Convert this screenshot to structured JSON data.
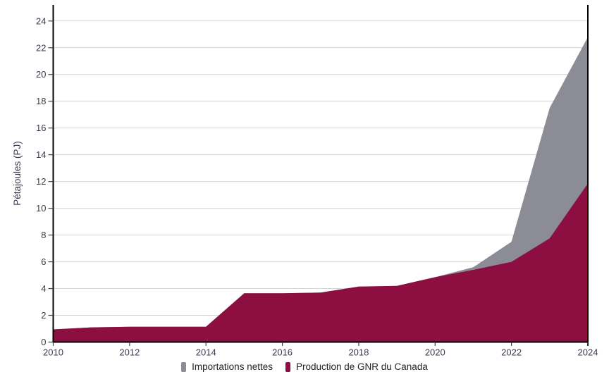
{
  "chart_data": {
    "type": "area",
    "stacked": true,
    "title": "",
    "xlabel": "",
    "ylabel": "Pétajoules (PJ)",
    "x": [
      2010,
      2011,
      2012,
      2013,
      2014,
      2015,
      2016,
      2017,
      2018,
      2019,
      2020,
      2021,
      2022,
      2023,
      2024
    ],
    "series": [
      {
        "name": "Production de GNR du Canada",
        "color": "#8D0F42",
        "values": [
          0.95,
          1.1,
          1.15,
          1.15,
          1.15,
          3.65,
          3.65,
          3.7,
          4.15,
          4.2,
          4.85,
          5.4,
          6.0,
          7.75,
          11.85
        ]
      },
      {
        "name": "Importations nettes",
        "color": "#8C8C96",
        "values": [
          0,
          0,
          0,
          0,
          0,
          0,
          0,
          0,
          0,
          0,
          0,
          0.2,
          1.5,
          9.75,
          10.95
        ]
      }
    ],
    "stacked_totals": [
      0.95,
      1.1,
      1.15,
      1.15,
      1.15,
      3.65,
      3.65,
      3.7,
      4.15,
      4.2,
      4.85,
      5.6,
      7.5,
      17.5,
      22.8
    ],
    "xlim": [
      2010,
      2024
    ],
    "ylim": [
      0,
      25.2
    ],
    "x_ticks": [
      2010,
      2012,
      2014,
      2016,
      2018,
      2020,
      2022,
      2024
    ],
    "y_ticks": [
      0,
      2,
      4,
      6,
      8,
      10,
      12,
      14,
      16,
      18,
      20,
      22,
      24
    ],
    "grid": "horizontal",
    "legend_position": "bottom",
    "annotations": [
      {
        "type": "vline",
        "x": 2024,
        "color": "#000000",
        "width": 2
      }
    ],
    "colors": {
      "grid": "#D4D4D4",
      "axis": "#000000",
      "tick": "#404040",
      "tick_label": "#3A3A4E"
    }
  },
  "legend": {
    "items_note": "legend shows imports first, then production"
  }
}
